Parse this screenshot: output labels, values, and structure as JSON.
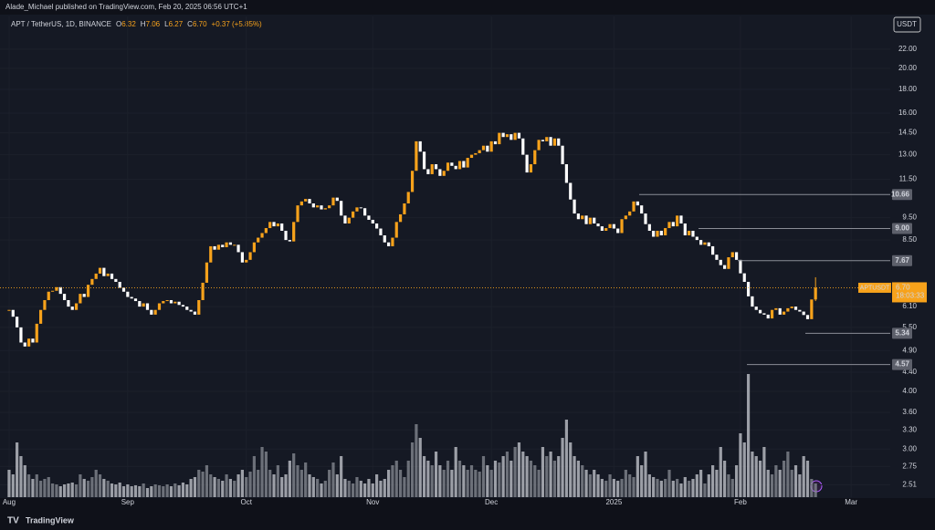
{
  "header": {
    "publisher": "Alade_Michael published on TradingView.com, Feb 20, 2025 06:56 UTC+1"
  },
  "chart_data": {
    "type": "candlestick",
    "symbol": "APT / TetherUS, 1D, BINANCE",
    "ohlc": [
      {
        "key": "O",
        "value": 6.32,
        "label": "6.32"
      },
      {
        "key": "H",
        "value": 7.06,
        "label": "7.06"
      },
      {
        "key": "L",
        "value": 6.27,
        "label": "6.27"
      },
      {
        "key": "C",
        "value": 6.7,
        "label": "6.70"
      }
    ],
    "change": "+0.37 (+5.85%)",
    "currency": "USDT",
    "close": [
      6.0,
      5.8,
      5.5,
      5.1,
      5.0,
      5.2,
      5.1,
      5.6,
      6.0,
      6.3,
      6.57,
      6.6,
      6.72,
      6.5,
      6.3,
      6.1,
      6.0,
      6.2,
      6.5,
      6.4,
      6.8,
      7.0,
      7.19,
      7.4,
      7.1,
      7.19,
      7.0,
      6.9,
      6.7,
      6.57,
      6.4,
      6.35,
      6.27,
      6.1,
      6.2,
      6.0,
      5.86,
      6.0,
      6.2,
      6.27,
      6.3,
      6.2,
      6.25,
      6.15,
      6.1,
      6.0,
      5.95,
      5.86,
      6.3,
      6.87,
      7.6,
      8.24,
      8.1,
      8.3,
      8.2,
      8.4,
      8.3,
      8.3,
      8.0,
      7.6,
      7.7,
      8.0,
      8.4,
      8.6,
      8.8,
      9.02,
      9.3,
      9.1,
      9.23,
      8.9,
      8.5,
      8.44,
      9.3,
      10.1,
      10.3,
      10.43,
      10.2,
      10.0,
      10.1,
      9.9,
      9.96,
      10.1,
      10.5,
      10.33,
      9.6,
      9.23,
      9.5,
      9.8,
      10.0,
      9.96,
      9.6,
      9.4,
      9.23,
      9.0,
      8.7,
      8.4,
      8.24,
      8.6,
      9.3,
      9.66,
      10.2,
      10.8,
      12.0,
      13.9,
      13.2,
      12.1,
      11.8,
      12.4,
      12.1,
      11.7,
      12.0,
      12.5,
      12.3,
      12.1,
      12.6,
      12.2,
      12.8,
      13.0,
      13.1,
      13.3,
      13.6,
      13.2,
      13.9,
      13.7,
      14.5,
      14.2,
      14.4,
      14.0,
      14.5,
      14.1,
      13.0,
      11.9,
      12.4,
      13.3,
      14.0,
      13.9,
      14.2,
      13.6,
      14.1,
      13.6,
      12.4,
      11.3,
      10.4,
      9.7,
      9.43,
      9.6,
      9.2,
      9.5,
      9.23,
      9.1,
      8.9,
      9.02,
      9.2,
      9.0,
      8.8,
      9.43,
      9.6,
      9.8,
      10.3,
      10.1,
      9.7,
      9.2,
      8.9,
      8.64,
      8.9,
      8.7,
      9.02,
      9.3,
      9.1,
      9.6,
      9.23,
      8.7,
      8.9,
      8.64,
      8.5,
      8.3,
      8.4,
      8.24,
      7.9,
      7.7,
      7.5,
      7.36,
      7.8,
      8.0,
      7.7,
      7.2,
      6.9,
      6.42,
      6.1,
      6.0,
      5.9,
      5.86,
      5.75,
      6.0,
      6.05,
      5.86,
      5.95,
      6.05,
      6.1,
      6.0,
      5.95,
      5.85,
      5.73,
      6.32,
      6.7
    ],
    "volume": [
      30,
      25,
      60,
      45,
      35,
      25,
      20,
      25,
      18,
      20,
      22,
      15,
      14,
      12,
      14,
      15,
      16,
      14,
      25,
      20,
      18,
      22,
      30,
      25,
      20,
      18,
      15,
      14,
      16,
      12,
      14,
      12,
      13,
      12,
      15,
      10,
      12,
      14,
      13,
      12,
      14,
      12,
      15,
      13,
      16,
      14,
      20,
      22,
      30,
      28,
      35,
      25,
      22,
      20,
      18,
      25,
      20,
      18,
      25,
      30,
      22,
      28,
      45,
      30,
      55,
      50,
      30,
      25,
      35,
      22,
      25,
      40,
      48,
      35,
      30,
      38,
      25,
      22,
      20,
      15,
      18,
      30,
      38,
      25,
      45,
      20,
      18,
      15,
      22,
      18,
      15,
      20,
      15,
      25,
      18,
      20,
      30,
      35,
      40,
      30,
      22,
      40,
      60,
      80,
      65,
      45,
      40,
      35,
      50,
      35,
      30,
      40,
      30,
      55,
      40,
      35,
      30,
      35,
      30,
      28,
      45,
      35,
      30,
      40,
      38,
      45,
      50,
      40,
      55,
      60,
      50,
      45,
      40,
      35,
      30,
      55,
      45,
      50,
      40,
      45,
      65,
      85,
      60,
      45,
      40,
      35,
      30,
      25,
      30,
      25,
      20,
      18,
      25,
      20,
      18,
      20,
      30,
      25,
      22,
      45,
      35,
      50,
      25,
      22,
      20,
      18,
      20,
      30,
      18,
      20,
      15,
      22,
      18,
      20,
      25,
      30,
      15,
      25,
      35,
      30,
      55,
      40,
      25,
      20,
      35,
      70,
      60,
      135,
      50,
      45,
      40,
      55,
      30,
      25,
      35,
      30,
      40,
      50,
      30,
      35,
      25,
      45,
      40,
      20,
      15
    ],
    "up_color": "#f7a21b",
    "down_color": "#ffffff",
    "log_scale": true,
    "grid": true,
    "ylim": [
      2.36,
      25.9
    ],
    "yticks": [
      {
        "value": 22,
        "label": "22.00"
      },
      {
        "value": 20,
        "label": "20.00"
      },
      {
        "value": 18,
        "label": "18.00"
      },
      {
        "value": 16,
        "label": "16.00"
      },
      {
        "value": 14.5,
        "label": "14.50"
      },
      {
        "value": 13,
        "label": "13.00"
      },
      {
        "value": 11.5,
        "label": "11.50"
      },
      {
        "value": 9.5,
        "label": "9.50"
      },
      {
        "value": 8.5,
        "label": "8.50"
      },
      {
        "value": 6.1,
        "label": "6.10"
      },
      {
        "value": 5.5,
        "label": "5.50"
      },
      {
        "value": 4.9,
        "label": "4.90"
      },
      {
        "value": 4.4,
        "label": "4.40"
      },
      {
        "value": 4,
        "label": "4.00"
      },
      {
        "value": 3.6,
        "label": "3.60"
      },
      {
        "value": 3.3,
        "label": "3.30"
      },
      {
        "value": 3,
        "label": "3.00"
      },
      {
        "value": 2.75,
        "label": "2.75"
      },
      {
        "value": 2.51,
        "label": "2.51"
      }
    ],
    "xlim": [
      -2.3,
      222.9
    ],
    "xticks": [
      {
        "value": 0,
        "label": "Aug"
      },
      {
        "value": 30,
        "label": "Sep"
      },
      {
        "value": 60,
        "label": "Oct"
      },
      {
        "value": 92,
        "label": "Nov"
      },
      {
        "value": 122,
        "label": "Dec"
      },
      {
        "value": 153,
        "label": "2025"
      },
      {
        "value": 185,
        "label": "Feb"
      },
      {
        "value": 213,
        "label": "Mar"
      }
    ],
    "levels": [
      {
        "value": 10.66,
        "label": "10.66"
      },
      {
        "value": 9,
        "label": "9.00"
      },
      {
        "value": 7.67,
        "label": "7.67"
      },
      {
        "value": 5.34,
        "label": "5.34"
      },
      {
        "value": 4.57,
        "label": "4.57"
      }
    ],
    "last_price": {
      "symbol": "APTUSDT",
      "value": 6.7,
      "label": "6.70",
      "countdown": "18:03:33"
    }
  },
  "footer": {
    "brand": "TradingView"
  }
}
